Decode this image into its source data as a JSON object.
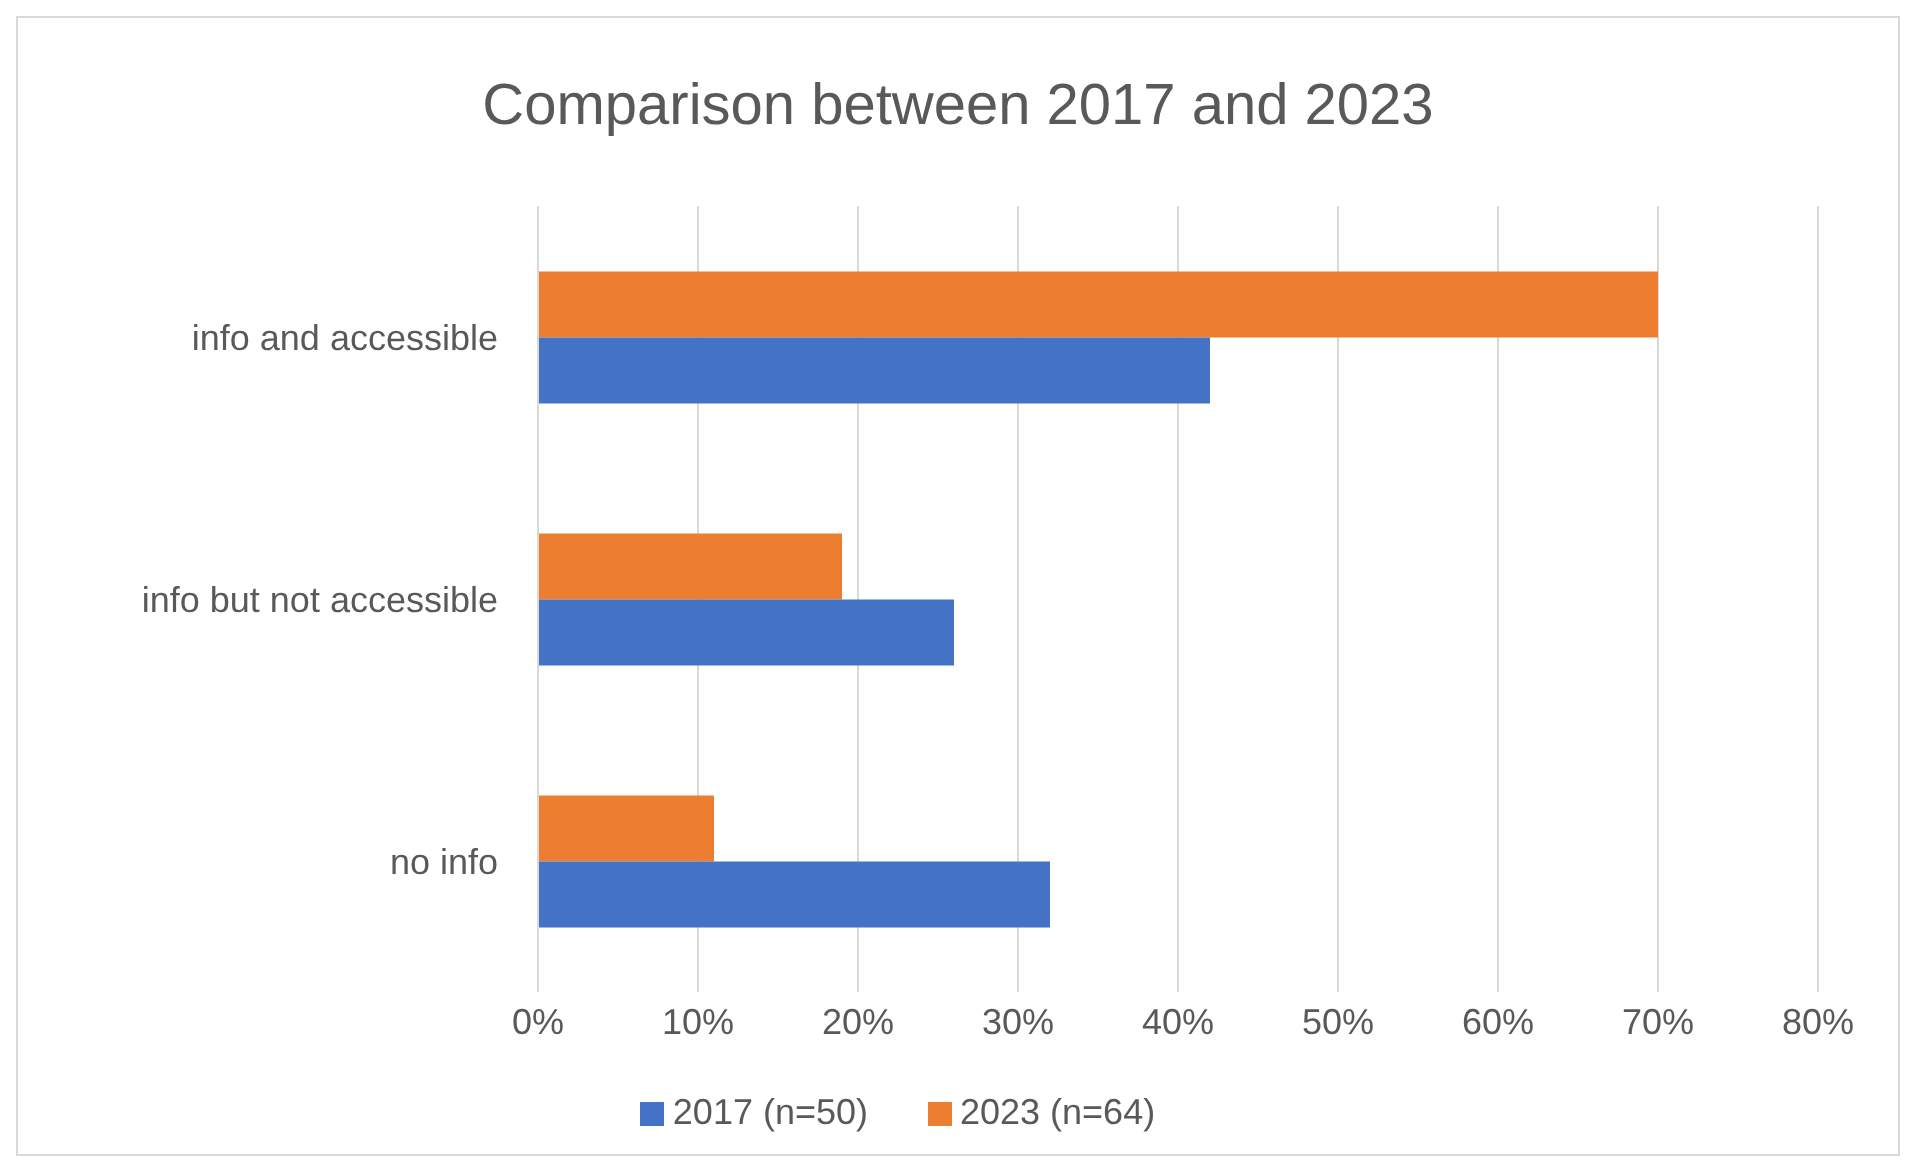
{
  "chart_data": {
    "type": "bar",
    "orientation": "horizontal",
    "title": "Comparison between 2017 and 2023",
    "categories": [
      "info and accessible",
      "info but not accessible",
      "no info"
    ],
    "series": [
      {
        "name": "2023 (n=64)",
        "color": "#ed7d31",
        "values": [
          70,
          19,
          11
        ]
      },
      {
        "name": "2017 (n=50)",
        "color": "#4472c4",
        "values": [
          42,
          26,
          32
        ]
      }
    ],
    "xlim": [
      0,
      80
    ],
    "xticks": [
      {
        "value": 0,
        "label": "0%"
      },
      {
        "value": 10,
        "label": "10%"
      },
      {
        "value": 20,
        "label": "20%"
      },
      {
        "value": 30,
        "label": "30%"
      },
      {
        "value": 40,
        "label": "40%"
      },
      {
        "value": 50,
        "label": "50%"
      },
      {
        "value": 60,
        "label": "60%"
      },
      {
        "value": 70,
        "label": "70%"
      },
      {
        "value": 80,
        "label": "80%"
      }
    ],
    "grid": "x",
    "legend": "bottom"
  }
}
